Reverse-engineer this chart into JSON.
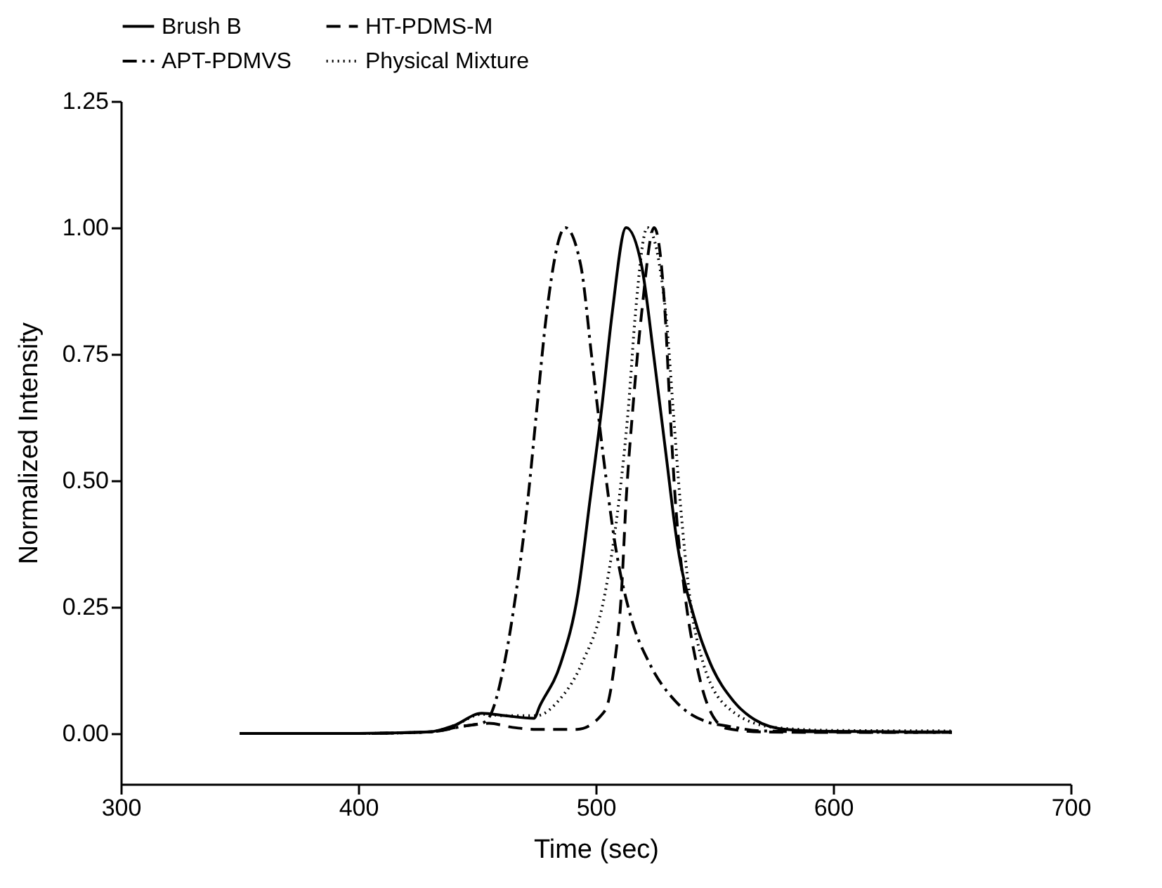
{
  "chart_data": {
    "type": "line",
    "xlabel": "Time (sec)",
    "ylabel": "Normalized Intensity",
    "xlim": [
      300,
      700
    ],
    "xticks": [
      300,
      400,
      500,
      600,
      700
    ],
    "ylim": [
      -0.1,
      1.25
    ],
    "yticks": [
      {
        "value": 0,
        "label": "0.00"
      },
      {
        "value": 0.25,
        "label": "0.25"
      },
      {
        "value": 0.5,
        "label": "0.50"
      },
      {
        "value": 0.75,
        "label": "0.75"
      },
      {
        "value": 1,
        "label": "1.00"
      },
      {
        "value": 1.25,
        "label": "1.25"
      }
    ],
    "grid": false,
    "legend": "top",
    "marker": "none",
    "series": [
      {
        "name": "Brush B",
        "color": "#000000",
        "line_style": "solid",
        "x": [
          350,
          400,
          430,
          440,
          452,
          462,
          474,
          476.4,
          485.2,
          492.5,
          497.6,
          502.6,
          506.9,
          512.8,
          519.3,
          524.6,
          529.5,
          534.5,
          541.4,
          548.3,
          558,
          567,
          580,
          600,
          650
        ],
        "values": [
          0,
          0,
          0.003,
          0.015,
          0.04,
          0.035,
          0.03,
          0.054,
          0.138,
          0.277,
          0.462,
          0.647,
          0.83,
          1.0,
          0.925,
          0.74,
          0.555,
          0.37,
          0.23,
          0.138,
          0.064,
          0.027,
          0.008,
          0.004,
          0.003
        ]
      },
      {
        "name": "HT-PDMS-M",
        "color": "#000000",
        "line_style": "dashed",
        "x": [
          350,
          400,
          430,
          445,
          455,
          465,
          475,
          492.1,
          503.9,
          507.9,
          510.8,
          512.8,
          515.7,
          519.3,
          524.6,
          529.2,
          531.2,
          533.5,
          537.5,
          542.4,
          547.3,
          555,
          570,
          600,
          650
        ],
        "values": [
          0,
          0,
          0.003,
          0.015,
          0.02,
          0.012,
          0.008,
          0.008,
          0.045,
          0.138,
          0.277,
          0.462,
          0.647,
          0.83,
          1.0,
          0.83,
          0.647,
          0.462,
          0.277,
          0.138,
          0.054,
          0.01,
          0.003,
          0.002,
          0.002
        ]
      },
      {
        "name": "APT-PDMVS",
        "color": "#000000",
        "line_style": "dashdot",
        "x": [
          350,
          400,
          430,
          445,
          452,
          455.6,
          461.5,
          466.4,
          471.4,
          475.3,
          479.3,
          487.2,
          493.7,
          498.4,
          503,
          508.3,
          514.8,
          522.7,
          533.5,
          547.3,
          555,
          570,
          600,
          650
        ],
        "values": [
          0,
          0,
          0.003,
          0.015,
          0.02,
          0.036,
          0.138,
          0.277,
          0.462,
          0.647,
          0.83,
          1.0,
          0.925,
          0.74,
          0.555,
          0.37,
          0.23,
          0.138,
          0.064,
          0.022,
          0.015,
          0.005,
          0.003,
          0.002
        ]
      },
      {
        "name": "Physical Mixture",
        "color": "#000000",
        "line_style": "dotted",
        "x": [
          350,
          400,
          430,
          440,
          452,
          462,
          475,
          484.2,
          494.1,
          503.9,
          509.8,
          513.8,
          516.7,
          521.7,
          529.5,
          532.5,
          535.5,
          539.4,
          545.3,
          557.2,
          575,
          600,
          650
        ],
        "values": [
          0,
          0,
          0.003,
          0.015,
          0.038,
          0.035,
          0.035,
          0.064,
          0.138,
          0.277,
          0.462,
          0.647,
          0.83,
          1.0,
          0.83,
          0.647,
          0.462,
          0.277,
          0.138,
          0.045,
          0.012,
          0.006,
          0.005
        ]
      }
    ]
  }
}
